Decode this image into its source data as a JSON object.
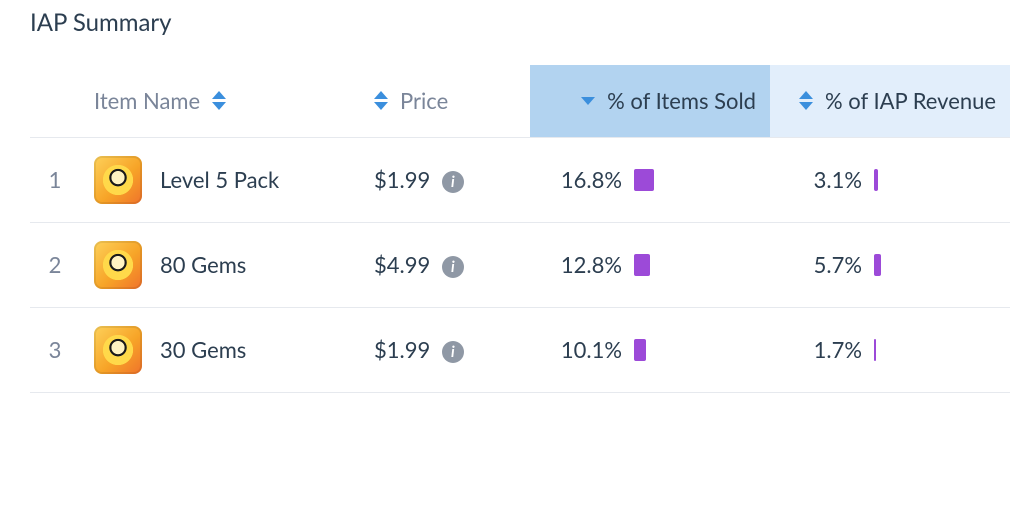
{
  "title": "IAP Summary",
  "colors": {
    "text_dark": "#2c3e50",
    "text_muted": "#7a8599",
    "row_border": "#e6e9ee",
    "header_sorted_bg": "#b2d3f0",
    "header_light_bg": "#e2eefb",
    "sort_arrow": "#3b8fdd",
    "bar": "#9c4ad8",
    "info_badge": "#8f98a5",
    "app_icon_base": "#f7a528"
  },
  "bar_scale_max_percent": 100,
  "columns": {
    "rank": {
      "label": "",
      "sortable": false
    },
    "name": {
      "label": "Item Name",
      "sortable": true,
      "sort_state": "none"
    },
    "price": {
      "label": "Price",
      "sortable": true,
      "sort_state": "none"
    },
    "pct_sold": {
      "label": "% of Items Sold",
      "sortable": true,
      "sort_state": "desc",
      "highlighted": true
    },
    "pct_rev": {
      "label": "% of IAP Revenue",
      "sortable": true,
      "sort_state": "none",
      "highlighted": "light"
    }
  },
  "rows": [
    {
      "rank": "1",
      "icon": "brawl-stars-icon",
      "name": "Level 5 Pack",
      "price": "$1.99",
      "has_price_info": true,
      "pct_sold_label": "16.8%",
      "pct_sold_value": 16.8,
      "pct_rev_label": "3.1%",
      "pct_rev_value": 3.1
    },
    {
      "rank": "2",
      "icon": "brawl-stars-icon",
      "name": "80 Gems",
      "price": "$4.99",
      "has_price_info": true,
      "pct_sold_label": "12.8%",
      "pct_sold_value": 12.8,
      "pct_rev_label": "5.7%",
      "pct_rev_value": 5.7
    },
    {
      "rank": "3",
      "icon": "brawl-stars-icon",
      "name": "30 Gems",
      "price": "$1.99",
      "has_price_info": true,
      "pct_sold_label": "10.1%",
      "pct_sold_value": 10.1,
      "pct_rev_label": "1.7%",
      "pct_rev_value": 1.7
    }
  ]
}
